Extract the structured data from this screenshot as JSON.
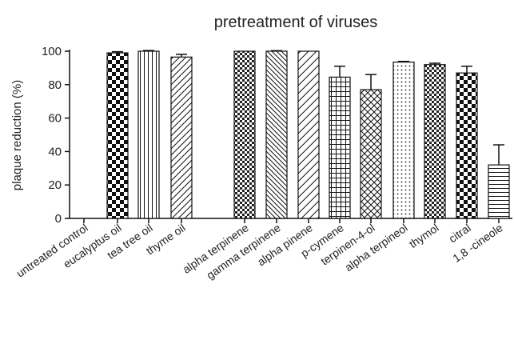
{
  "chart_data": {
    "type": "bar",
    "title": "pretreatment of viruses",
    "xlabel": "",
    "ylabel": "plaque reduction (%)",
    "ylim": [
      0,
      100
    ],
    "yticks": [
      0,
      20,
      40,
      60,
      80,
      100
    ],
    "grid": false,
    "legend": "none",
    "categories": [
      "untreated control",
      "eucalyptus oil",
      "tea tree oil",
      "thyme oil",
      "alpha terpinene",
      "gamma terpinene",
      "alpha pinene",
      "p-cymene",
      "terpinen-4-ol",
      "alpha terpineol",
      "thymol",
      "citral",
      "1,8 -cineole"
    ],
    "values": [
      0,
      99,
      100,
      96.5,
      100,
      100,
      100,
      84.5,
      77,
      93.5,
      92,
      87,
      32
    ],
    "error_upper": [
      0,
      0.7,
      0.4,
      1.6,
      0,
      0.3,
      0,
      6.5,
      9,
      0.4,
      0.8,
      4,
      12
    ],
    "patterns": [
      "none",
      "checker",
      "vertical",
      "diagonal",
      "checker-fine",
      "diagonal-back",
      "diagonal-wide",
      "grid",
      "crosshatch",
      "dots",
      "checker-fine",
      "checker",
      "horizontal"
    ]
  }
}
